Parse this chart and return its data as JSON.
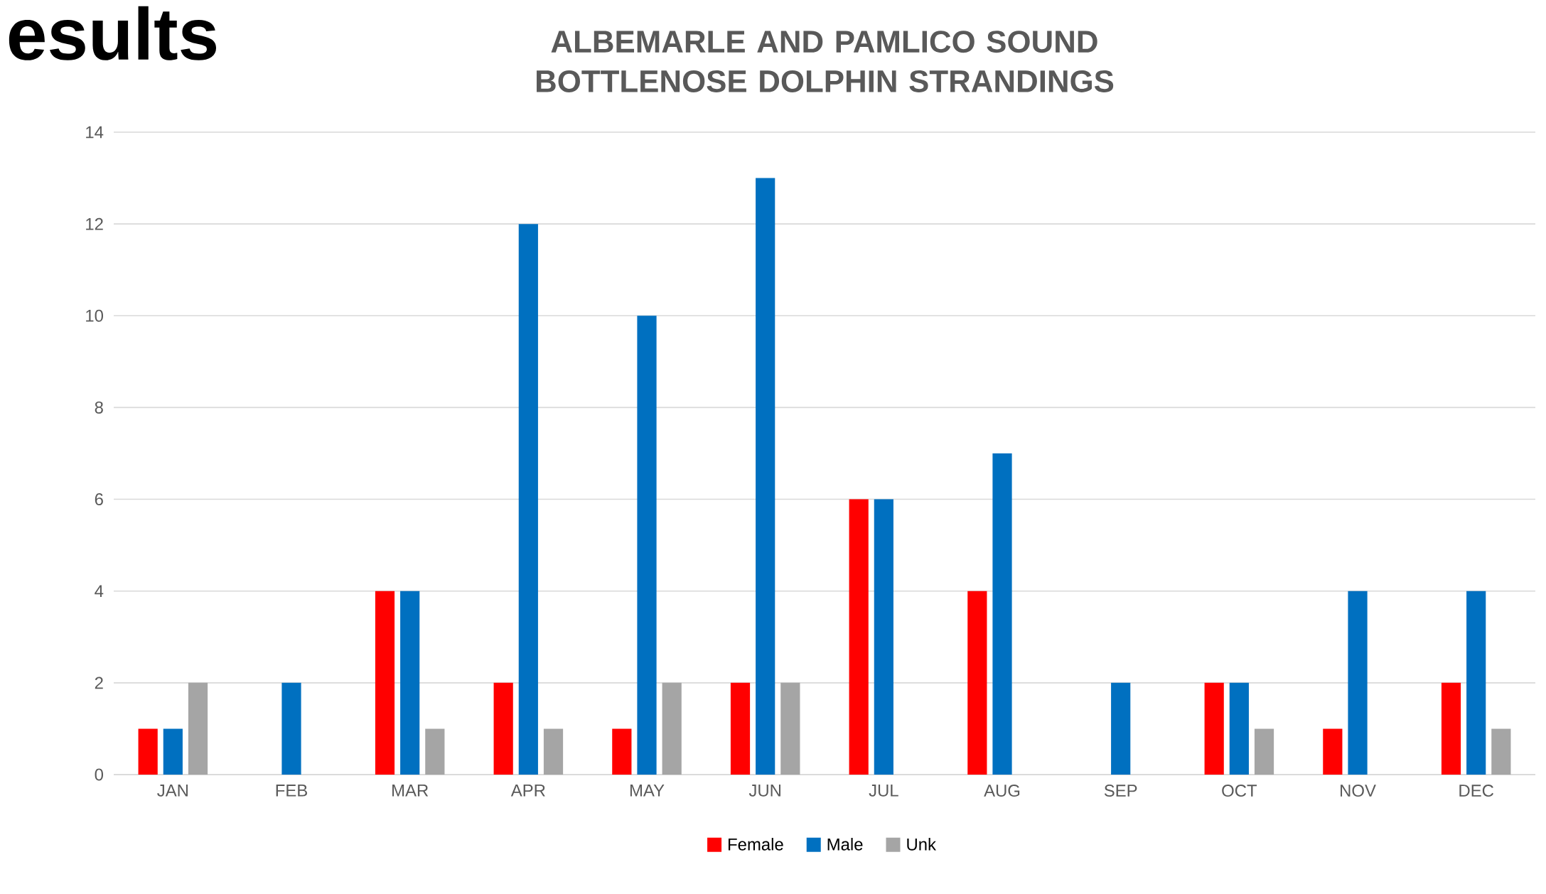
{
  "chart_data": {
    "type": "bar",
    "title": "ALBEMARLE AND PAMLICO SOUND BOTTLENOSE DOLPHIN STRANDINGS",
    "categories": [
      "JAN",
      "FEB",
      "MAR",
      "APR",
      "MAY",
      "JUN",
      "JUL",
      "AUG",
      "SEP",
      "OCT",
      "NOV",
      "DEC"
    ],
    "series": [
      {
        "name": "Female",
        "color": "#ff0000",
        "values": [
          1,
          0,
          4,
          2,
          1,
          2,
          6,
          4,
          0,
          2,
          1,
          2
        ]
      },
      {
        "name": "Male",
        "color": "#0070c0",
        "values": [
          1,
          2,
          4,
          12,
          10,
          13,
          6,
          7,
          2,
          2,
          4,
          4
        ]
      },
      {
        "name": "Unk",
        "color": "#a5a5a5",
        "values": [
          2,
          0,
          1,
          1,
          2,
          2,
          0,
          0,
          0,
          1,
          0,
          1
        ]
      }
    ],
    "ylim": [
      0,
      14
    ],
    "yticks": [
      0,
      2,
      4,
      6,
      8,
      10,
      12,
      14
    ],
    "grid": "y",
    "legend": "bottom",
    "annotations": [
      "esults"
    ]
  }
}
